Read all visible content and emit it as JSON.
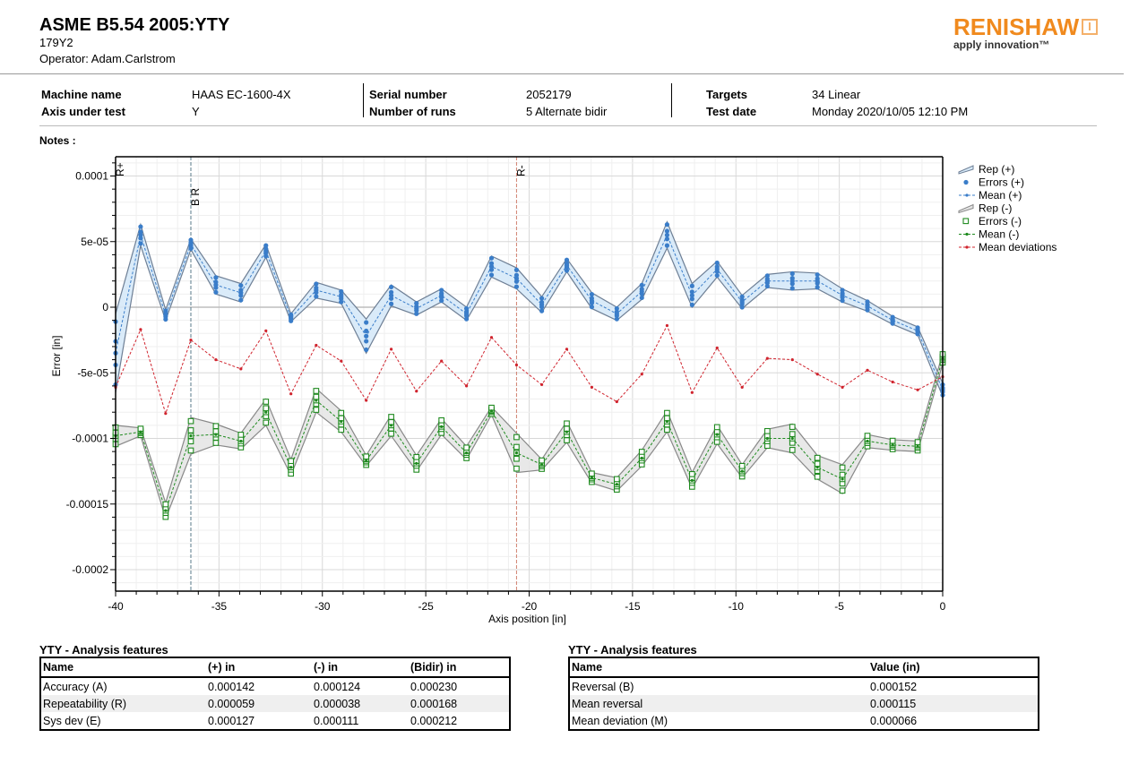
{
  "header": {
    "title": "ASME B5.54 2005:YTY",
    "subtitle": "179Y2",
    "operator": "Operator: Adam.Carlstrom",
    "logo_brand": "RENISHAW",
    "logo_tagline": "apply innovation™",
    "brand_color": "#f08a1e"
  },
  "info": {
    "machine_name_label": "Machine name",
    "machine_name": "HAAS EC-1600-4X",
    "axis_label": "Axis under test",
    "axis": "Y",
    "serial_label": "Serial number",
    "serial": "2052179",
    "runs_label": "Number of runs",
    "runs": "5 Alternate bidir",
    "targets_label": "Targets",
    "targets": "34 Linear",
    "date_label": "Test date",
    "date": "Monday 2020/10/05 12:10 PM"
  },
  "notes_label": "Notes :",
  "chart_data": {
    "type": "line",
    "xlabel": "Axis position [in]",
    "ylabel": "Error [in]",
    "xlim": [
      -40,
      0
    ],
    "ylim": [
      -0.000215,
      0.000115
    ],
    "x_ticks": [
      -40,
      -35,
      -30,
      -25,
      -20,
      -15,
      -10,
      -5,
      0
    ],
    "y_ticks": [
      0.0001,
      5e-05,
      0,
      -5e-05,
      -0.0001,
      -0.00015,
      -0.0002
    ],
    "y_tick_labels": [
      "0.0001",
      "5e-05",
      "0",
      "-5e-05",
      "-0.0001",
      "-0.00015",
      "-0.0002"
    ],
    "grid": true,
    "legend_position": "right",
    "legend": [
      "Rep (+)",
      "Errors (+)",
      "Mean (+)",
      "Rep (-)",
      "Errors (-)",
      "Mean (-)",
      "Mean deviations"
    ],
    "unit_scale": 1e-06,
    "x": [
      -40,
      -38.79,
      -37.58,
      -36.36,
      -35.15,
      -33.94,
      -32.73,
      -31.52,
      -30.3,
      -29.09,
      -27.88,
      -26.67,
      -25.45,
      -24.24,
      -23.03,
      -21.82,
      -20.61,
      -19.39,
      -18.18,
      -16.97,
      -15.76,
      -14.55,
      -13.33,
      -12.12,
      -10.91,
      -9.7,
      -8.48,
      -7.27,
      -6.06,
      -4.85,
      -3.64,
      -2.42,
      -1.21,
      0
    ],
    "series": [
      {
        "name": "Mean (+)",
        "color": "#3a7dc9",
        "band_color": "#d6e9f8",
        "band_edge": "#6e7f95",
        "values": [
          -35,
          55,
          -6,
          48,
          17,
          11,
          43,
          -8,
          13,
          8,
          -22,
          9,
          -1,
          9,
          -5,
          31,
          22,
          2,
          32,
          5,
          -5,
          12,
          55,
          9,
          29,
          4,
          20,
          20,
          20,
          9,
          1,
          -10,
          -18,
          -63
        ],
        "rep_half": [
          30,
          8,
          4,
          4,
          7,
          7,
          5,
          3,
          6,
          5,
          13,
          8,
          5,
          5,
          5,
          8,
          8,
          6,
          5,
          6,
          5,
          6,
          10,
          9,
          6,
          5,
          5,
          7,
          6,
          5,
          4,
          3,
          3,
          5
        ]
      },
      {
        "name": "Mean (-)",
        "color": "#1f8a1f",
        "band_color": "#e6e6e6",
        "band_edge": "#888888",
        "values": [
          -98,
          -95,
          -155,
          -98,
          -97,
          -102,
          -80,
          -122,
          -71,
          -87,
          -117,
          -90,
          -119,
          -91,
          -111,
          -79,
          -111,
          -120,
          -95,
          -130,
          -135,
          -115,
          -87,
          -132,
          -97,
          -125,
          -100,
          -100,
          -122,
          -131,
          -102,
          -105,
          -106,
          -39
        ],
        "rep_half": [
          8,
          3,
          6,
          14,
          8,
          6,
          10,
          6,
          9,
          8,
          4,
          8,
          6,
          6,
          5,
          3,
          15,
          4,
          8,
          4,
          5,
          6,
          8,
          6,
          7,
          5,
          7,
          11,
          9,
          11,
          5,
          4,
          4,
          4
        ]
      },
      {
        "name": "Mean deviations",
        "color": "#d0242e",
        "values": [
          -61,
          -17,
          -81,
          -25,
          -40,
          -47,
          -18,
          -66,
          -29,
          -41,
          -71,
          -32,
          -64,
          -41,
          -60,
          -23,
          -44,
          -59,
          -32,
          -61,
          -72,
          -51,
          -14,
          -65,
          -31,
          -61,
          -39,
          -40,
          -51,
          -61,
          -48,
          -57,
          -63,
          -53
        ]
      }
    ],
    "annotations": [
      {
        "label": "R+",
        "x": -40,
        "color": "#333333"
      },
      {
        "label": "B R",
        "x": -36.36,
        "color": "#5a7a8a"
      },
      {
        "label": "R-",
        "x": -20.61,
        "color": "#d08070"
      }
    ]
  },
  "table1": {
    "title": "YTY - Analysis features",
    "headers": [
      "Name",
      "(+) in",
      "(-) in",
      "(Bidir) in"
    ],
    "rows": [
      [
        "Accuracy (A)",
        "0.000142",
        "0.000124",
        "0.000230"
      ],
      [
        "Repeatability (R)",
        "0.000059",
        "0.000038",
        "0.000168"
      ],
      [
        "Sys dev (E)",
        "0.000127",
        "0.000111",
        "0.000212"
      ]
    ]
  },
  "table2": {
    "title": "YTY - Analysis features",
    "headers": [
      "Name",
      "Value (in)"
    ],
    "rows": [
      [
        "Reversal (B)",
        "0.000152"
      ],
      [
        "Mean reversal",
        "0.000115"
      ],
      [
        "Mean deviation (M)",
        "0.000066"
      ]
    ]
  }
}
